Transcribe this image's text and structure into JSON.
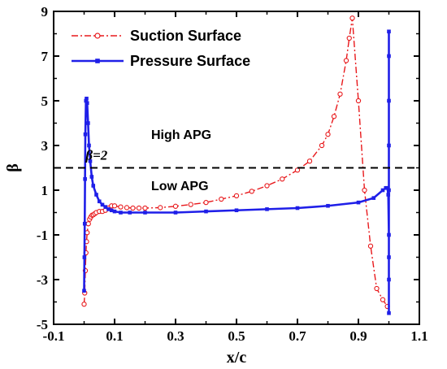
{
  "chart_data": {
    "type": "line",
    "xlabel": "x/c",
    "ylabel": "β",
    "xlim": [
      -0.1,
      1.1
    ],
    "ylim": [
      -5,
      9
    ],
    "x_ticks": [
      "-0.1",
      "0.1",
      "0.3",
      "0.5",
      "0.7",
      "0.9",
      "1.1"
    ],
    "y_ticks": [
      "-5",
      "-3",
      "-1",
      "1",
      "3",
      "5",
      "7",
      "9"
    ],
    "legend_position": "top-left",
    "series": [
      {
        "name": "Suction Surface",
        "color": "#e8191c",
        "style": "dash-dot",
        "marker": "open-circle",
        "x": [
          0.0,
          0.002,
          0.004,
          0.006,
          0.008,
          0.01,
          0.014,
          0.018,
          0.022,
          0.026,
          0.03,
          0.035,
          0.04,
          0.05,
          0.06,
          0.07,
          0.08,
          0.09,
          0.1,
          0.12,
          0.14,
          0.16,
          0.18,
          0.2,
          0.25,
          0.3,
          0.35,
          0.4,
          0.45,
          0.5,
          0.55,
          0.6,
          0.65,
          0.7,
          0.74,
          0.78,
          0.8,
          0.82,
          0.84,
          0.86,
          0.87,
          0.88,
          0.9,
          0.92,
          0.94,
          0.96,
          0.98,
          0.995
        ],
        "y": [
          -4.1,
          -3.6,
          -2.6,
          -1.8,
          -1.3,
          -0.9,
          -0.5,
          -0.3,
          -0.2,
          -0.12,
          -0.1,
          -0.05,
          0.0,
          0.05,
          0.05,
          0.1,
          0.2,
          0.3,
          0.3,
          0.25,
          0.22,
          0.2,
          0.2,
          0.2,
          0.22,
          0.28,
          0.36,
          0.45,
          0.6,
          0.75,
          0.95,
          1.2,
          1.5,
          1.9,
          2.3,
          3.0,
          3.5,
          4.3,
          5.3,
          6.8,
          7.8,
          8.7,
          5.0,
          1.0,
          -1.5,
          -3.4,
          -3.9,
          -4.2
        ]
      },
      {
        "name": "Pressure Surface",
        "color": "#1f1fe8",
        "style": "solid",
        "marker": "filled-square",
        "x": [
          0.0,
          0.001,
          0.002,
          0.003,
          0.004,
          0.006,
          0.008,
          0.01,
          0.013,
          0.016,
          0.02,
          0.025,
          0.03,
          0.04,
          0.05,
          0.06,
          0.07,
          0.08,
          0.09,
          0.1,
          0.12,
          0.15,
          0.2,
          0.3,
          0.4,
          0.5,
          0.6,
          0.7,
          0.8,
          0.9,
          0.95,
          0.98,
          0.99,
          0.995,
          0.998,
          1.0,
          1.0,
          1.0,
          1.0,
          1.0,
          1.0,
          1.0,
          1.0,
          1.0
        ],
        "y": [
          -3.5,
          -2.0,
          -0.5,
          1.5,
          3.5,
          5.0,
          5.1,
          4.9,
          4.0,
          3.0,
          2.3,
          1.6,
          1.2,
          0.8,
          0.5,
          0.35,
          0.25,
          0.15,
          0.1,
          0.05,
          0.0,
          0.0,
          0.0,
          0.0,
          0.05,
          0.1,
          0.15,
          0.2,
          0.3,
          0.45,
          0.65,
          1.0,
          1.1,
          1.1,
          0.8,
          -1.0,
          -3.0,
          -4.5,
          -2.0,
          1.0,
          3.0,
          5.0,
          7.0,
          8.1
        ]
      }
    ],
    "reference_line": {
      "y": 2,
      "style": "dashed",
      "color": "#000000",
      "label": "β=2"
    },
    "annotations": [
      "High APG",
      "Low APG"
    ]
  }
}
